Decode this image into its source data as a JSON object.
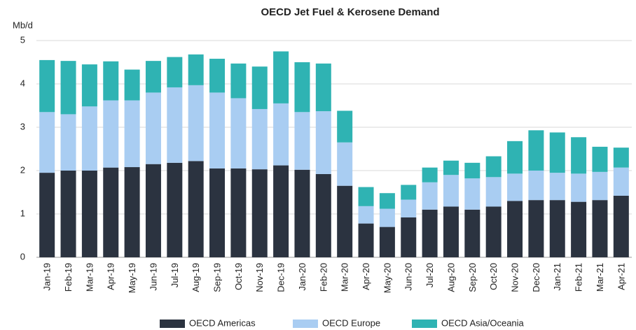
{
  "chart_data": {
    "type": "stacked_bar",
    "title": "OECD Jet Fuel & Kerosene Demand",
    "y_label": "Mb/d",
    "categories": [
      "Jan-19",
      "Feb-19",
      "Mar-19",
      "Apr-19",
      "May-19",
      "Jun-19",
      "Jul-19",
      "Aug-19",
      "Sep-19",
      "Oct-19",
      "Nov-19",
      "Dec-19",
      "Jan-20",
      "Feb-20",
      "Mar-20",
      "Apr-20",
      "May-20",
      "Jun-20",
      "Jul-20",
      "Aug-20",
      "Sep-20",
      "Oct-20",
      "Nov-20",
      "Dec-20",
      "Jan-21",
      "Feb-21",
      "Mar-21",
      "Apr-21"
    ],
    "series": [
      {
        "name": "OECD Americas",
        "color": "#2b3340",
        "values": [
          1.95,
          2.0,
          2.0,
          2.07,
          2.08,
          2.15,
          2.18,
          2.22,
          2.05,
          2.05,
          2.03,
          2.12,
          2.02,
          1.92,
          1.65,
          0.78,
          0.7,
          0.92,
          1.1,
          1.17,
          1.1,
          1.17,
          1.3,
          1.32,
          1.32,
          1.28,
          1.32,
          1.42
        ]
      },
      {
        "name": "OECD Europe",
        "color": "#a9cdf2",
        "values": [
          1.4,
          1.3,
          1.48,
          1.55,
          1.54,
          1.65,
          1.74,
          1.75,
          1.75,
          1.62,
          1.39,
          1.43,
          1.33,
          1.45,
          1.0,
          0.4,
          0.42,
          0.41,
          0.63,
          0.73,
          0.72,
          0.68,
          0.63,
          0.68,
          0.63,
          0.65,
          0.65,
          0.65
        ]
      },
      {
        "name": "OECD Asia/Oceania",
        "color": "#2fb3b3",
        "values": [
          1.2,
          1.23,
          0.97,
          0.9,
          0.71,
          0.73,
          0.7,
          0.71,
          0.78,
          0.8,
          0.98,
          1.2,
          1.15,
          1.1,
          0.73,
          0.44,
          0.36,
          0.34,
          0.34,
          0.33,
          0.36,
          0.48,
          0.75,
          0.93,
          0.93,
          0.84,
          0.58,
          0.46
        ]
      }
    ],
    "ylim": [
      0,
      5
    ],
    "yticks": [
      0,
      1,
      2,
      3,
      4,
      5
    ],
    "grid": true,
    "legend": "bottom"
  }
}
